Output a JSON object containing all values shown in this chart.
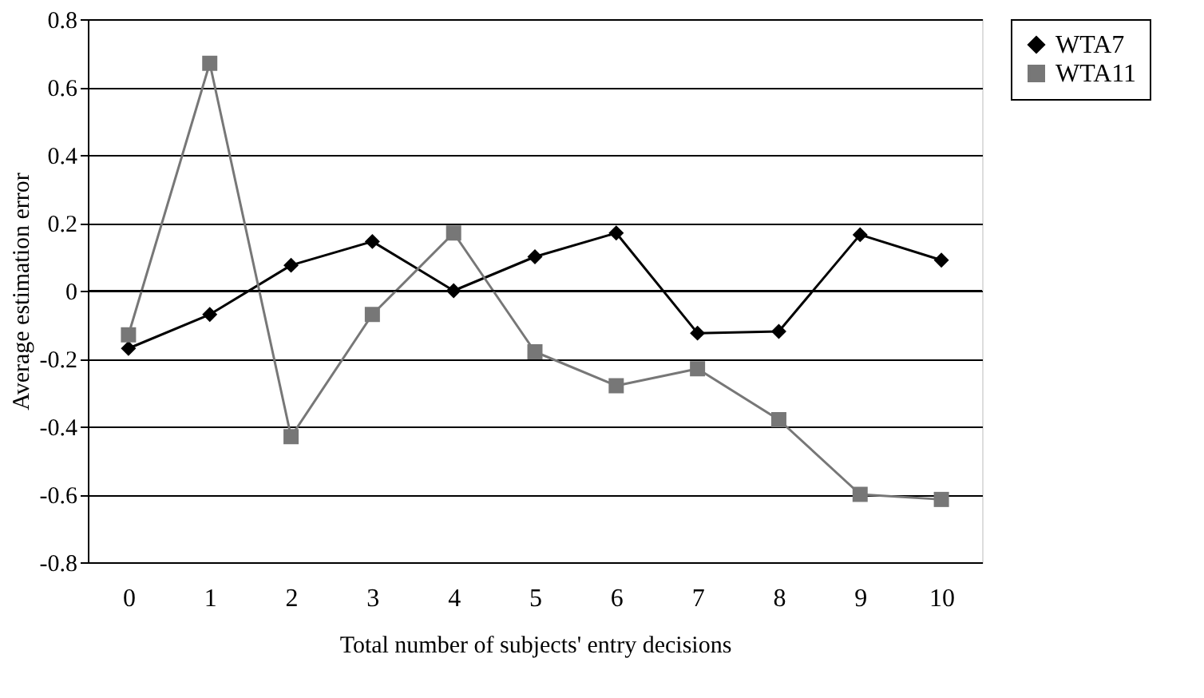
{
  "chart_data": {
    "type": "line",
    "xlabel": "Total number of subjects' entry decisions",
    "ylabel": "Average estimation error",
    "categories": [
      "0",
      "1",
      "2",
      "3",
      "4",
      "5",
      "6",
      "7",
      "8",
      "9",
      "10"
    ],
    "series": [
      {
        "name": "WTA7",
        "color": "#000000",
        "marker": "diamond",
        "values": [
          -0.17,
          -0.07,
          0.075,
          0.145,
          0.0,
          0.1,
          0.17,
          -0.125,
          -0.12,
          0.165,
          0.09
        ]
      },
      {
        "name": "WTA11",
        "color": "#777777",
        "marker": "square",
        "values": [
          -0.13,
          0.67,
          -0.43,
          -0.07,
          0.17,
          -0.18,
          -0.28,
          -0.23,
          -0.38,
          -0.6,
          -0.615
        ]
      }
    ],
    "ylim": [
      -0.8,
      0.8
    ],
    "yticks": [
      {
        "value": -0.8,
        "label": "-0.8"
      },
      {
        "value": -0.6,
        "label": "-0.6"
      },
      {
        "value": -0.4,
        "label": "-0.4"
      },
      {
        "value": -0.2,
        "label": "-0.2"
      },
      {
        "value": 0,
        "label": "0"
      },
      {
        "value": 0.2,
        "label": "0.2"
      },
      {
        "value": 0.4,
        "label": "0.4"
      },
      {
        "value": 0.6,
        "label": "0.6"
      },
      {
        "value": 0.8,
        "label": "0.8"
      }
    ],
    "grid": "y",
    "legend": "right",
    "line_style": "solid"
  }
}
